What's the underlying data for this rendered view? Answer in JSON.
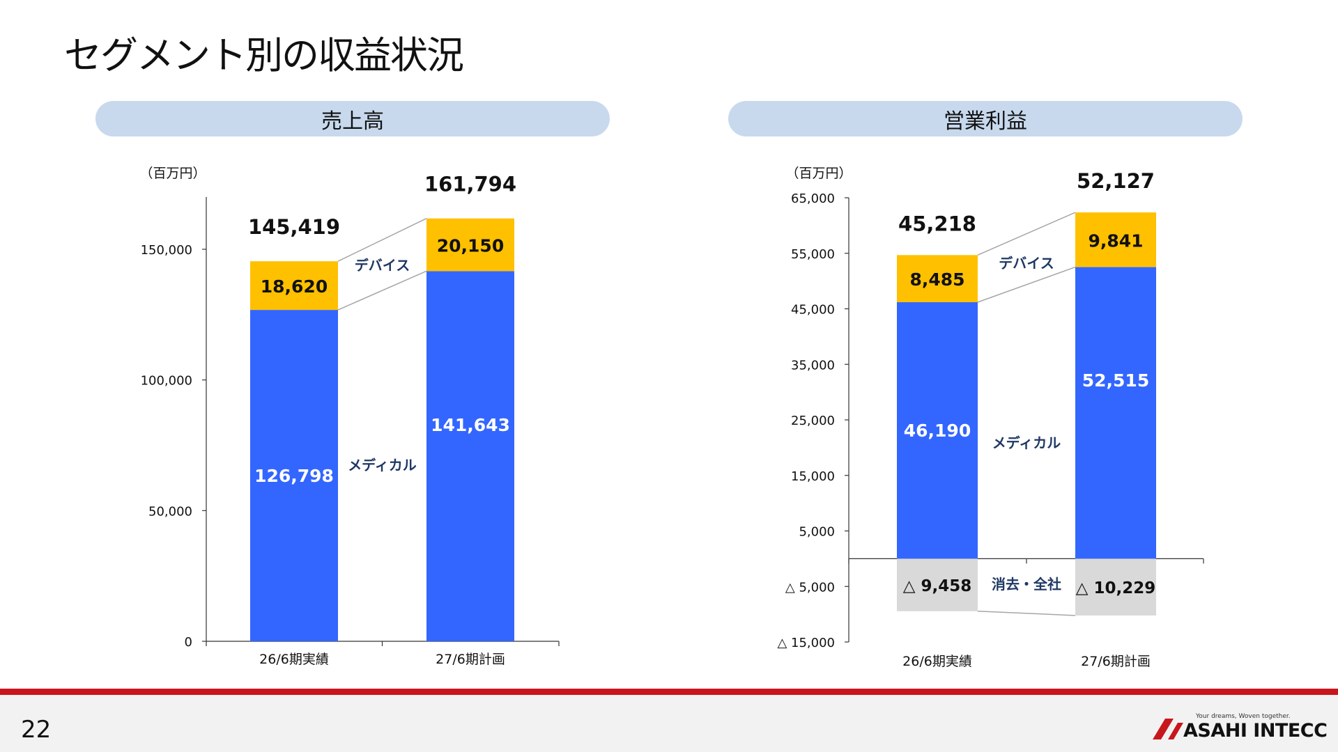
{
  "page": {
    "title": "セグメント別の収益状況",
    "page_number": "22"
  },
  "logo": {
    "tagline": "Your dreams, Woven together.",
    "brand": "ASAHI INTECC"
  },
  "colors": {
    "medical": "#3366ff",
    "device": "#ffc000",
    "elimination": "#d9d9d9",
    "pill": "#c8d9ee",
    "footer_band": "#c8161d",
    "segment_label": "#1f3864"
  },
  "chart_data": [
    {
      "type": "bar",
      "stacked": true,
      "title": "売上高",
      "unit_label": "（百万円）",
      "categories": [
        "26/6期実績",
        "27/6期計画"
      ],
      "series": [
        {
          "name": "メディカル",
          "values": [
            126798,
            141643
          ],
          "labels": [
            "126,798",
            "141,643"
          ]
        },
        {
          "name": "デバイス",
          "values": [
            18620,
            20150
          ],
          "labels": [
            "18,620",
            "20,150"
          ]
        }
      ],
      "totals": [
        145419,
        161794
      ],
      "total_labels": [
        "145,419",
        "161,794"
      ],
      "ylim": [
        0,
        170000
      ],
      "yticks": [
        0,
        50000,
        100000,
        150000
      ],
      "ytick_labels": [
        "0",
        "50,000",
        "100,000",
        "150,000"
      ],
      "grid": false,
      "legend": "none"
    },
    {
      "type": "bar",
      "stacked": true,
      "title": "営業利益",
      "unit_label": "（百万円）",
      "categories": [
        "26/6期実績",
        "27/6期計画"
      ],
      "series": [
        {
          "name": "メディカル",
          "values": [
            46190,
            52515
          ],
          "labels": [
            "46,190",
            "52,515"
          ]
        },
        {
          "name": "デバイス",
          "values": [
            8485,
            9841
          ],
          "labels": [
            "8,485",
            "9,841"
          ]
        },
        {
          "name": "消去・全社",
          "values": [
            -9458,
            -10229
          ],
          "labels": [
            "△ 9,458",
            "△ 10,229"
          ]
        }
      ],
      "totals": [
        45218,
        52127
      ],
      "total_labels": [
        "45,218",
        "52,127"
      ],
      "ylim": [
        -15000,
        65000
      ],
      "yticks": [
        -15000,
        -5000,
        5000,
        15000,
        25000,
        35000,
        45000,
        55000,
        65000
      ],
      "ytick_labels": [
        "△ 15,000",
        "△ 5,000",
        "5,000",
        "15,000",
        "25,000",
        "35,000",
        "45,000",
        "55,000",
        "65,000"
      ],
      "grid": false,
      "legend": "none"
    }
  ]
}
